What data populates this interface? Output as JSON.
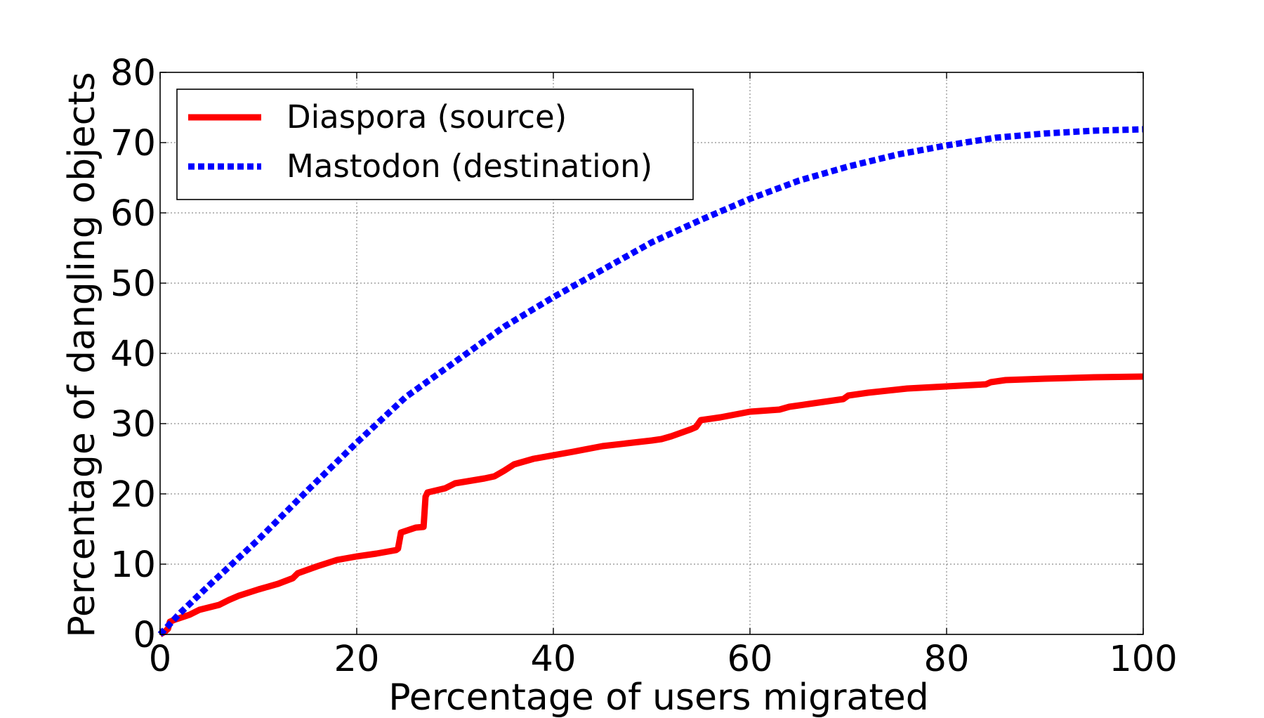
{
  "chart_data": {
    "type": "line",
    "title": "",
    "xlabel": "Percentage of users migrated",
    "ylabel": "Percentage of dangling objects",
    "xlim": [
      0,
      100
    ],
    "ylim": [
      0,
      80
    ],
    "xticks": [
      0,
      20,
      40,
      60,
      80,
      100
    ],
    "yticks": [
      0,
      10,
      20,
      30,
      40,
      50,
      60,
      70,
      80
    ],
    "xtick_labels": [
      "0",
      "20",
      "40",
      "60",
      "80",
      "100"
    ],
    "ytick_labels": [
      "0",
      "10",
      "20",
      "30",
      "40",
      "50",
      "60",
      "70",
      "80"
    ],
    "grid": true,
    "legend_position": "top-left",
    "series": [
      {
        "name": "Diaspora (source)",
        "color": "#ff0000",
        "line_style": "solid",
        "x": [
          0,
          0.5,
          0.8,
          1.0,
          1.5,
          3,
          4,
          6,
          7,
          8,
          10,
          12,
          13.5,
          14,
          16,
          18,
          20,
          22,
          24,
          24.2,
          24.5,
          26,
          26.8,
          27,
          27.2,
          29,
          30,
          33,
          34,
          35,
          36,
          38,
          42,
          45,
          50,
          51,
          52,
          53,
          54,
          54.5,
          55,
          57,
          60,
          63,
          64,
          66,
          68,
          69.5,
          70,
          72,
          76,
          80,
          84,
          84.5,
          86,
          90,
          95,
          100
        ],
        "y": [
          0,
          0.4,
          0.8,
          1.8,
          2.1,
          2.8,
          3.5,
          4.2,
          4.9,
          5.5,
          6.4,
          7.2,
          8,
          8.7,
          9.7,
          10.6,
          11.1,
          11.5,
          12,
          12.2,
          14.5,
          15.2,
          15.3,
          19.6,
          20.2,
          20.8,
          21.5,
          22.2,
          22.5,
          23.3,
          24.2,
          25,
          26,
          26.8,
          27.6,
          27.8,
          28.2,
          28.7,
          29.2,
          29.5,
          30.5,
          30.9,
          31.7,
          32,
          32.4,
          32.8,
          33.2,
          33.5,
          34,
          34.4,
          35,
          35.3,
          35.6,
          35.9,
          36.2,
          36.4,
          36.6,
          36.7
        ]
      },
      {
        "name": "Mastodon (destination)",
        "color": "#0000ff",
        "line_style": "dotted",
        "x": [
          0,
          1,
          2,
          5,
          10,
          15,
          20,
          25,
          30,
          35,
          40,
          45,
          50,
          55,
          60,
          65,
          70,
          75,
          80,
          85,
          90,
          95,
          100
        ],
        "y": [
          0,
          1.5,
          3,
          7,
          13.5,
          20.5,
          27.3,
          33.8,
          38.8,
          43.8,
          48,
          51.9,
          55.8,
          59,
          62,
          64.6,
          66.6,
          68.3,
          69.6,
          70.7,
          71.3,
          71.7,
          71.9
        ]
      }
    ]
  }
}
